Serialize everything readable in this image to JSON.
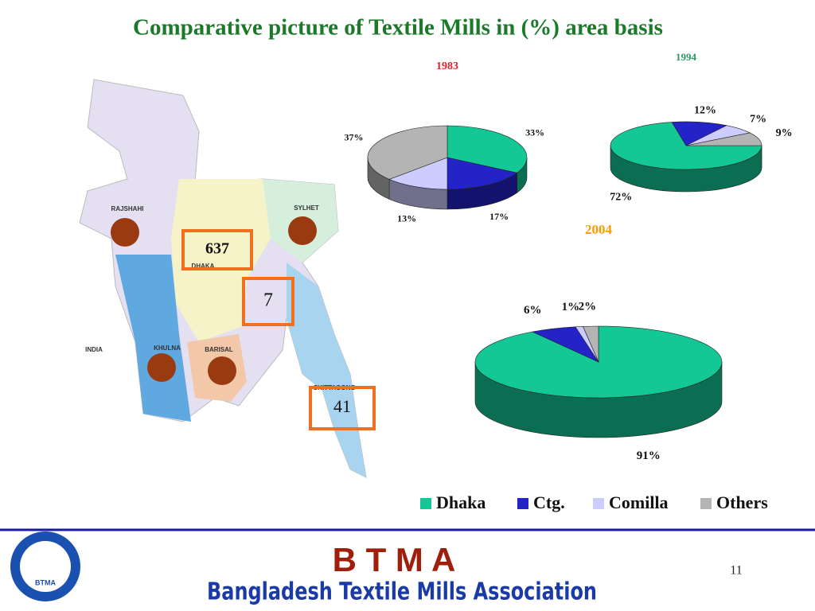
{
  "title": "Comparative picture of Textile Mills in (%) area basis",
  "chart_data": [
    {
      "type": "pie",
      "title": "1983",
      "categories": [
        "Dhaka",
        "Ctg.",
        "Comilla",
        "Others"
      ],
      "colors": [
        "#14c896",
        "#2323c8",
        "#ccccff",
        "#b4b4b4"
      ],
      "values": [
        33,
        17,
        13,
        37
      ],
      "value_labels": [
        "33%",
        "17%",
        "13%",
        "37%"
      ],
      "legend": true
    },
    {
      "type": "pie",
      "title": "1994",
      "categories": [
        "Dhaka",
        "Ctg.",
        "Comilla",
        "Others"
      ],
      "colors": [
        "#14c896",
        "#2323c8",
        "#ccccff",
        "#b4b4b4"
      ],
      "values": [
        72,
        12,
        7,
        9
      ],
      "value_labels": [
        "72%",
        "12%",
        "7%",
        "9%"
      ]
    },
    {
      "type": "pie",
      "title": "2004",
      "categories": [
        "Dhaka",
        "Ctg.",
        "Comilla",
        "Others"
      ],
      "colors": [
        "#14c896",
        "#2323c8",
        "#ccccff",
        "#b4b4b4"
      ],
      "values": [
        91,
        6,
        1,
        2
      ],
      "value_labels": [
        "91%",
        "6%",
        "1%",
        "2%"
      ]
    }
  ],
  "map": {
    "regions": [
      "RAJSHAHI",
      "SYLHET",
      "DHAKA",
      "KHULNA",
      "BARISAL",
      "CHITTAGONG",
      "INDIA"
    ],
    "boxes": [
      "637",
      "7",
      "41"
    ]
  },
  "footer": {
    "logo": "BTMA",
    "acronym": "B T M A",
    "name": "Bangladesh Textile Mills Association",
    "page": "11"
  }
}
